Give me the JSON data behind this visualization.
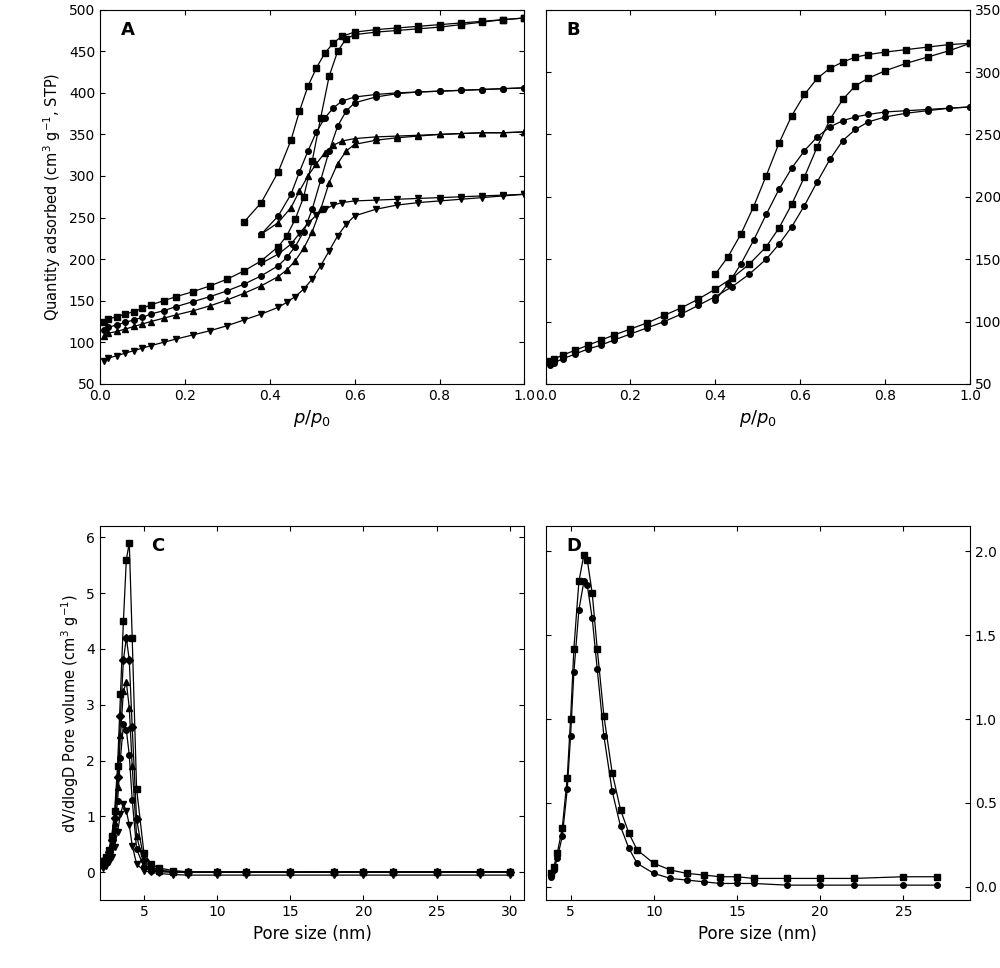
{
  "panel_A": {
    "label": "A",
    "xlabel": "$p/p_{0}$",
    "ylabel": "Quantity adsorbed (cm$^{3}$ g$^{-1}$, STP)",
    "xlim": [
      0.0,
      1.0
    ],
    "ylim": [
      50,
      500
    ],
    "yticks": [
      50,
      100,
      150,
      200,
      250,
      300,
      350,
      400,
      450,
      500
    ],
    "xticks": [
      0.0,
      0.2,
      0.4,
      0.6,
      0.8,
      1.0
    ],
    "series": [
      {
        "marker": "s",
        "ads_x": [
          0.01,
          0.02,
          0.04,
          0.06,
          0.08,
          0.1,
          0.12,
          0.15,
          0.18,
          0.22,
          0.26,
          0.3,
          0.34,
          0.38,
          0.42,
          0.44,
          0.46,
          0.48,
          0.5,
          0.52,
          0.54,
          0.56,
          0.58,
          0.6,
          0.65,
          0.7,
          0.75,
          0.8,
          0.85,
          0.9,
          0.95,
          1.0
        ],
        "ads_y": [
          125,
          128,
          131,
          134,
          137,
          141,
          145,
          150,
          155,
          161,
          168,
          176,
          186,
          198,
          215,
          228,
          248,
          275,
          318,
          370,
          420,
          450,
          465,
          470,
          473,
          475,
          477,
          479,
          482,
          485,
          488,
          490
        ],
        "des_x": [
          1.0,
          0.95,
          0.9,
          0.85,
          0.8,
          0.75,
          0.7,
          0.65,
          0.6,
          0.57,
          0.55,
          0.53,
          0.51,
          0.49,
          0.47,
          0.45,
          0.42,
          0.38,
          0.34
        ],
        "des_y": [
          490,
          488,
          486,
          484,
          482,
          480,
          478,
          476,
          473,
          468,
          460,
          448,
          430,
          408,
          378,
          343,
          305,
          268,
          245
        ]
      },
      {
        "marker": "o",
        "ads_x": [
          0.01,
          0.02,
          0.04,
          0.06,
          0.08,
          0.1,
          0.12,
          0.15,
          0.18,
          0.22,
          0.26,
          0.3,
          0.34,
          0.38,
          0.42,
          0.44,
          0.46,
          0.48,
          0.5,
          0.52,
          0.54,
          0.56,
          0.58,
          0.6,
          0.65,
          0.7,
          0.75,
          0.8,
          0.85,
          0.9,
          0.95,
          1.0
        ],
        "ads_y": [
          115,
          118,
          121,
          124,
          127,
          130,
          134,
          138,
          143,
          149,
          155,
          162,
          170,
          180,
          192,
          202,
          215,
          233,
          260,
          295,
          330,
          360,
          378,
          388,
          395,
          399,
          401,
          402,
          403,
          404,
          405,
          406
        ],
        "des_x": [
          1.0,
          0.95,
          0.9,
          0.85,
          0.8,
          0.75,
          0.7,
          0.65,
          0.6,
          0.57,
          0.55,
          0.53,
          0.51,
          0.49,
          0.47,
          0.45,
          0.42,
          0.38
        ],
        "des_y": [
          406,
          405,
          404,
          403,
          402,
          401,
          400,
          398,
          395,
          390,
          382,
          370,
          353,
          330,
          305,
          278,
          252,
          230
        ]
      },
      {
        "marker": "^",
        "ads_x": [
          0.01,
          0.02,
          0.04,
          0.06,
          0.08,
          0.1,
          0.12,
          0.15,
          0.18,
          0.22,
          0.26,
          0.3,
          0.34,
          0.38,
          0.42,
          0.44,
          0.46,
          0.48,
          0.5,
          0.52,
          0.54,
          0.56,
          0.58,
          0.6,
          0.65,
          0.7,
          0.75,
          0.8,
          0.85,
          0.9,
          0.95,
          1.0
        ],
        "ads_y": [
          108,
          111,
          113,
          116,
          119,
          122,
          125,
          129,
          133,
          138,
          144,
          151,
          159,
          168,
          179,
          187,
          198,
          213,
          233,
          260,
          292,
          315,
          330,
          338,
          343,
          346,
          348,
          350,
          351,
          352,
          352,
          353
        ],
        "des_x": [
          1.0,
          0.95,
          0.9,
          0.85,
          0.8,
          0.75,
          0.7,
          0.65,
          0.6,
          0.57,
          0.55,
          0.53,
          0.51,
          0.49,
          0.47,
          0.45,
          0.42,
          0.38
        ],
        "des_y": [
          353,
          352,
          352,
          351,
          350,
          349,
          348,
          347,
          345,
          342,
          337,
          328,
          315,
          300,
          282,
          262,
          244,
          230
        ]
      },
      {
        "marker": "v",
        "ads_x": [
          0.01,
          0.02,
          0.04,
          0.06,
          0.08,
          0.1,
          0.12,
          0.15,
          0.18,
          0.22,
          0.26,
          0.3,
          0.34,
          0.38,
          0.42,
          0.44,
          0.46,
          0.48,
          0.5,
          0.52,
          0.54,
          0.56,
          0.58,
          0.6,
          0.65,
          0.7,
          0.75,
          0.8,
          0.85,
          0.9,
          0.95,
          1.0
        ],
        "ads_y": [
          78,
          81,
          84,
          87,
          90,
          93,
          96,
          100,
          104,
          109,
          114,
          120,
          127,
          134,
          142,
          148,
          155,
          164,
          176,
          192,
          210,
          228,
          242,
          252,
          260,
          265,
          268,
          270,
          272,
          274,
          276,
          278
        ],
        "des_x": [
          1.0,
          0.95,
          0.9,
          0.85,
          0.8,
          0.75,
          0.7,
          0.65,
          0.6,
          0.57,
          0.55,
          0.53,
          0.51,
          0.49,
          0.47,
          0.45,
          0.42,
          0.38
        ],
        "des_y": [
          278,
          277,
          276,
          275,
          274,
          273,
          272,
          271,
          270,
          268,
          265,
          260,
          253,
          243,
          231,
          218,
          206,
          195
        ]
      }
    ]
  },
  "panel_B": {
    "label": "B",
    "xlabel": "$p/p_{0}$",
    "xlim": [
      0.0,
      1.0
    ],
    "ylim": [
      50,
      350
    ],
    "yticks": [
      50,
      100,
      150,
      200,
      250,
      300,
      350
    ],
    "xticks": [
      0.0,
      0.2,
      0.4,
      0.6,
      0.8,
      1.0
    ],
    "series": [
      {
        "marker": "s",
        "ads_x": [
          0.01,
          0.02,
          0.04,
          0.07,
          0.1,
          0.13,
          0.16,
          0.2,
          0.24,
          0.28,
          0.32,
          0.36,
          0.4,
          0.44,
          0.48,
          0.52,
          0.55,
          0.58,
          0.61,
          0.64,
          0.67,
          0.7,
          0.73,
          0.76,
          0.8,
          0.85,
          0.9,
          0.95,
          1.0
        ],
        "ads_y": [
          68,
          70,
          73,
          77,
          81,
          85,
          89,
          94,
          99,
          105,
          111,
          118,
          126,
          135,
          146,
          160,
          175,
          194,
          216,
          240,
          262,
          278,
          289,
          295,
          301,
          307,
          312,
          317,
          323
        ],
        "des_x": [
          1.0,
          0.95,
          0.9,
          0.85,
          0.8,
          0.76,
          0.73,
          0.7,
          0.67,
          0.64,
          0.61,
          0.58,
          0.55,
          0.52,
          0.49,
          0.46,
          0.43,
          0.4
        ],
        "des_y": [
          323,
          322,
          320,
          318,
          316,
          314,
          312,
          308,
          303,
          295,
          282,
          265,
          243,
          217,
          192,
          170,
          152,
          138
        ]
      },
      {
        "marker": "o",
        "ads_x": [
          0.01,
          0.02,
          0.04,
          0.07,
          0.1,
          0.13,
          0.16,
          0.2,
          0.24,
          0.28,
          0.32,
          0.36,
          0.4,
          0.44,
          0.48,
          0.52,
          0.55,
          0.58,
          0.61,
          0.64,
          0.67,
          0.7,
          0.73,
          0.76,
          0.8,
          0.85,
          0.9,
          0.95,
          1.0
        ],
        "ads_y": [
          65,
          67,
          70,
          74,
          78,
          81,
          85,
          90,
          95,
          100,
          106,
          113,
          120,
          128,
          138,
          150,
          162,
          176,
          193,
          212,
          230,
          245,
          254,
          260,
          264,
          267,
          269,
          271,
          272
        ],
        "des_x": [
          1.0,
          0.95,
          0.9,
          0.85,
          0.8,
          0.76,
          0.73,
          0.7,
          0.67,
          0.64,
          0.61,
          0.58,
          0.55,
          0.52,
          0.49,
          0.46,
          0.43,
          0.4
        ],
        "des_y": [
          272,
          271,
          270,
          269,
          268,
          266,
          264,
          261,
          256,
          248,
          237,
          223,
          206,
          186,
          165,
          146,
          130,
          117
        ]
      }
    ]
  },
  "panel_C": {
    "label": "C",
    "xlabel": "Pore size (nm)",
    "ylabel": "dV/dlogD Pore volume (cm$^{3}$ g$^{-1}$)",
    "xlim": [
      2.0,
      31.0
    ],
    "ylim": [
      -0.5,
      6.2
    ],
    "yticks": [
      0,
      1,
      2,
      3,
      4,
      5,
      6
    ],
    "xticks": [
      5,
      10,
      15,
      20,
      25,
      30
    ],
    "series": [
      {
        "marker": "s",
        "x": [
          2.2,
          2.4,
          2.6,
          2.8,
          3.0,
          3.2,
          3.4,
          3.6,
          3.8,
          4.0,
          4.2,
          4.5,
          5.0,
          5.5,
          6.0,
          7.0,
          8.0,
          10.0,
          12.0,
          15.0,
          18.0,
          20.0,
          22.0,
          25.0,
          28.0,
          30.0
        ],
        "y": [
          0.2,
          0.28,
          0.4,
          0.65,
          1.1,
          1.9,
          3.2,
          4.5,
          5.6,
          5.9,
          4.2,
          1.5,
          0.35,
          0.15,
          0.08,
          0.03,
          0.01,
          0.01,
          0.01,
          0.01,
          0.01,
          0.01,
          0.01,
          0.01,
          0.01,
          0.01
        ]
      },
      {
        "marker": "D",
        "x": [
          2.2,
          2.4,
          2.6,
          2.8,
          3.0,
          3.2,
          3.4,
          3.6,
          3.8,
          4.0,
          4.2,
          4.5,
          5.0,
          5.5,
          6.0,
          7.0,
          8.0,
          10.0,
          12.0,
          15.0,
          18.0,
          20.0,
          22.0,
          25.0,
          28.0,
          30.0
        ],
        "y": [
          0.18,
          0.25,
          0.36,
          0.58,
          0.98,
          1.7,
          2.8,
          3.8,
          4.2,
          3.8,
          2.6,
          0.95,
          0.22,
          0.08,
          0.04,
          0.01,
          0.0,
          0.0,
          0.0,
          0.0,
          0.0,
          0.0,
          0.0,
          0.0,
          0.0,
          0.0
        ]
      },
      {
        "marker": "^",
        "x": [
          2.2,
          2.4,
          2.6,
          2.8,
          3.0,
          3.2,
          3.4,
          3.6,
          3.8,
          4.0,
          4.2,
          4.5,
          5.0,
          5.5,
          6.0,
          7.0,
          8.0,
          10.0,
          12.0,
          15.0,
          18.0,
          20.0,
          22.0,
          25.0,
          28.0,
          30.0
        ],
        "y": [
          0.15,
          0.22,
          0.32,
          0.52,
          0.88,
          1.52,
          2.45,
          3.25,
          3.4,
          2.95,
          1.9,
          0.65,
          0.14,
          0.06,
          0.03,
          0.01,
          0.0,
          0.0,
          0.0,
          0.0,
          0.0,
          0.0,
          0.0,
          0.0,
          0.01,
          0.01
        ]
      },
      {
        "marker": "o",
        "x": [
          2.2,
          2.4,
          2.6,
          2.8,
          3.0,
          3.2,
          3.4,
          3.6,
          3.8,
          4.0,
          4.2,
          4.5,
          5.0,
          5.5,
          6.0,
          7.0,
          8.0,
          10.0,
          12.0,
          15.0,
          18.0,
          20.0,
          22.0,
          25.0,
          28.0,
          30.0
        ],
        "y": [
          0.12,
          0.18,
          0.28,
          0.45,
          0.75,
          1.28,
          2.05,
          2.65,
          2.55,
          2.1,
          1.3,
          0.42,
          0.09,
          0.03,
          0.01,
          0.0,
          0.0,
          0.0,
          0.0,
          0.0,
          0.01,
          0.01,
          0.01,
          0.01,
          0.01,
          0.01
        ]
      },
      {
        "marker": "v",
        "x": [
          2.2,
          2.4,
          2.6,
          2.8,
          3.0,
          3.2,
          3.4,
          3.6,
          3.8,
          4.0,
          4.2,
          4.5,
          5.0,
          5.5,
          6.0,
          7.0,
          8.0,
          10.0,
          12.0,
          15.0,
          18.0,
          20.0,
          22.0,
          25.0,
          28.0,
          30.0
        ],
        "y": [
          0.08,
          0.12,
          0.18,
          0.28,
          0.46,
          0.72,
          1.05,
          1.22,
          1.1,
          0.85,
          0.48,
          0.15,
          0.03,
          0.0,
          -0.02,
          -0.04,
          -0.05,
          -0.05,
          -0.05,
          -0.05,
          -0.05,
          -0.05,
          -0.05,
          -0.05,
          -0.05,
          -0.05
        ]
      }
    ]
  },
  "panel_D": {
    "label": "D",
    "xlabel": "Pore size (nm)",
    "xlim": [
      3.5,
      29.0
    ],
    "ylim": [
      -0.08,
      2.15
    ],
    "yticks": [
      0.0,
      0.5,
      1.0,
      1.5,
      2.0
    ],
    "xticks": [
      5,
      10,
      15,
      20,
      25
    ],
    "x_extra_tick": 30,
    "series": [
      {
        "marker": "s",
        "x": [
          3.8,
          4.0,
          4.2,
          4.5,
          4.8,
          5.0,
          5.2,
          5.5,
          5.8,
          6.0,
          6.3,
          6.6,
          7.0,
          7.5,
          8.0,
          8.5,
          9.0,
          10.0,
          11.0,
          12.0,
          13.0,
          14.0,
          15.0,
          16.0,
          18.0,
          20.0,
          22.0,
          25.0,
          27.0
        ],
        "y": [
          0.08,
          0.12,
          0.2,
          0.35,
          0.65,
          1.0,
          1.42,
          1.82,
          1.98,
          1.95,
          1.75,
          1.42,
          1.02,
          0.68,
          0.46,
          0.32,
          0.22,
          0.14,
          0.1,
          0.08,
          0.07,
          0.06,
          0.06,
          0.05,
          0.05,
          0.05,
          0.05,
          0.06,
          0.06
        ]
      },
      {
        "marker": "o",
        "x": [
          3.8,
          4.0,
          4.2,
          4.5,
          4.8,
          5.0,
          5.2,
          5.5,
          5.8,
          6.0,
          6.3,
          6.6,
          7.0,
          7.5,
          8.0,
          8.5,
          9.0,
          10.0,
          11.0,
          12.0,
          13.0,
          14.0,
          15.0,
          16.0,
          18.0,
          20.0,
          22.0,
          25.0,
          27.0
        ],
        "y": [
          0.06,
          0.1,
          0.17,
          0.3,
          0.58,
          0.9,
          1.28,
          1.65,
          1.82,
          1.8,
          1.6,
          1.3,
          0.9,
          0.57,
          0.36,
          0.23,
          0.14,
          0.08,
          0.05,
          0.04,
          0.03,
          0.02,
          0.02,
          0.02,
          0.01,
          0.01,
          0.01,
          0.01,
          0.01
        ]
      }
    ]
  },
  "color": "#000000",
  "markersize": 4,
  "linewidth": 0.9,
  "bg_color": "#f0f0f0"
}
